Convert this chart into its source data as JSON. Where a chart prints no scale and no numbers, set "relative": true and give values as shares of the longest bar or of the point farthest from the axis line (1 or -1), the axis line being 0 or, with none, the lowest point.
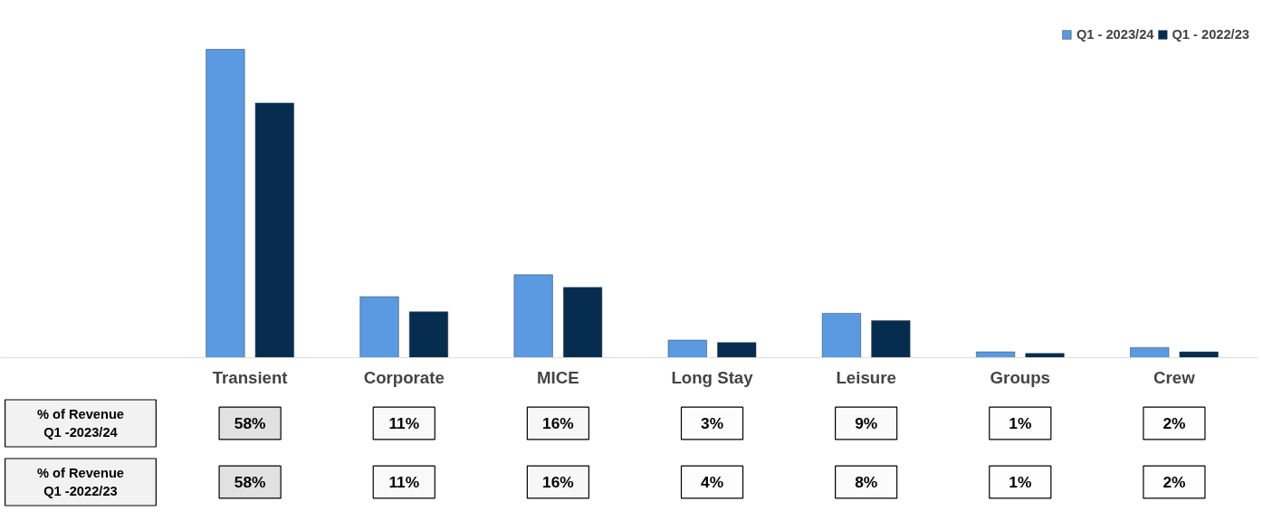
{
  "chart_data": [
    {
      "type": "bar",
      "relative": true,
      "legend": "top right",
      "categories": [
        "Transient",
        "Corporate",
        "MICE",
        "Long Stay",
        "Leisure",
        "Groups",
        "Crew"
      ],
      "series": [
        {
          "name": "Q1 - 2023/24",
          "color": "#5b9ae0",
          "values": [
            1,
            0.198,
            0.269,
            0.057,
            0.144,
            0.019,
            0.033
          ]
        },
        {
          "name": "Q1 - 2022/23",
          "color": "#062d4f",
          "values": [
            0.826,
            0.149,
            0.228,
            0.049,
            0.12,
            0.014,
            0.019
          ]
        }
      ]
    },
    {
      "type": "heatmap",
      "categories": [
        null,
        null,
        null,
        null,
        null,
        null,
        null
      ],
      "y_categories": [
        "% of Revenue\nQ1 -2023/24",
        "% of Revenue\nQ1 -2022/23"
      ],
      "cells": [
        [
          58,
          11,
          16,
          3,
          9,
          1,
          2
        ],
        [
          58,
          11,
          16,
          4,
          8,
          1,
          2
        ]
      ],
      "cell_labels": [
        [
          "58%",
          "11%",
          "16%",
          "3%",
          "9%",
          "1%",
          "2%"
        ],
        [
          "58%",
          "11%",
          "16%",
          "4%",
          "8%",
          "1%",
          "2%"
        ]
      ]
    }
  ]
}
